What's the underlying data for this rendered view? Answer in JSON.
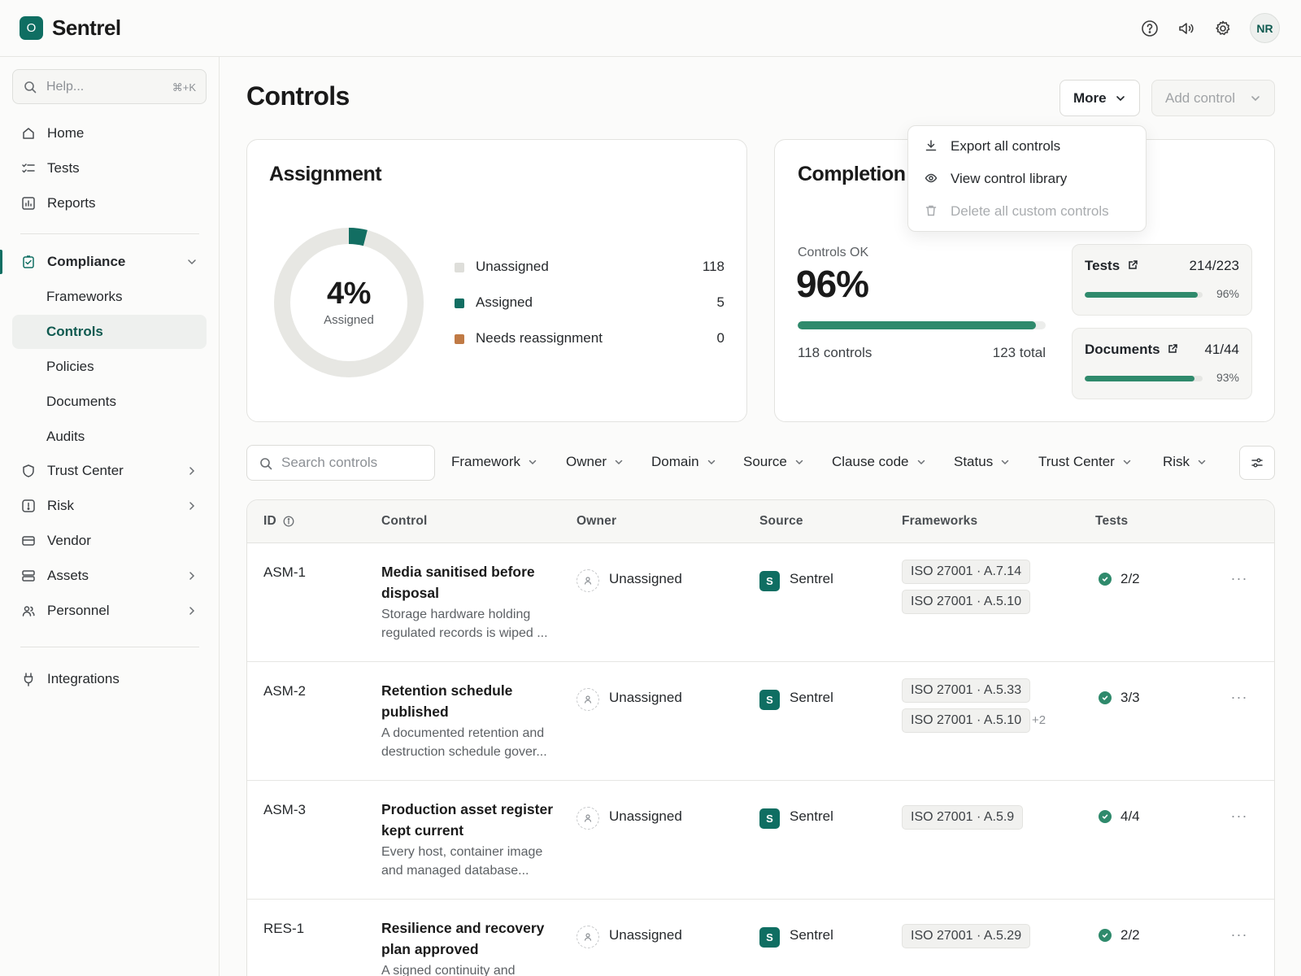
{
  "app": {
    "name": "Sentrel",
    "logo_letter": "O",
    "user_initials": "NR"
  },
  "header_icons": [
    "help-icon",
    "announcement-icon",
    "settings-icon"
  ],
  "sidebar": {
    "search_placeholder": "Help...",
    "search_shortcut": "⌘+K",
    "items": [
      {
        "label": "Home",
        "icon": "home-icon"
      },
      {
        "label": "Tests",
        "icon": "tests-icon"
      },
      {
        "label": "Reports",
        "icon": "reports-icon"
      },
      {
        "label": "Compliance",
        "icon": "compliance-icon",
        "expanded": true
      },
      {
        "label": "Trust Center",
        "icon": "shield-icon"
      },
      {
        "label": "Risk",
        "icon": "risk-icon"
      },
      {
        "label": "Vendor",
        "icon": "vendor-icon"
      },
      {
        "label": "Assets",
        "icon": "assets-icon"
      },
      {
        "label": "Personnel",
        "icon": "personnel-icon"
      },
      {
        "label": "Integrations",
        "icon": "plug-icon"
      }
    ],
    "compliance_sub": [
      "Frameworks",
      "Controls",
      "Policies",
      "Documents",
      "Audits"
    ],
    "active_sub": "Controls"
  },
  "page": {
    "title": "Controls",
    "more_button": "More",
    "add_button": "Add control"
  },
  "more_menu": {
    "items": [
      {
        "label": "Export all controls",
        "icon": "download-icon"
      },
      {
        "label": "View control library",
        "icon": "eye-icon"
      },
      {
        "label": "Delete all custom controls",
        "icon": "trash-icon",
        "disabled": true
      }
    ]
  },
  "assignment": {
    "title": "Assignment",
    "percent_label": "4%",
    "percent_sub": "Assigned",
    "assigned_fraction": 0.04,
    "legend": [
      {
        "label": "Unassigned",
        "value": "118",
        "color": "#dededa"
      },
      {
        "label": "Assigned",
        "value": "5",
        "color": "#126e62"
      },
      {
        "label": "Needs reassignment",
        "value": "0",
        "color": "#c07a45"
      }
    ]
  },
  "completion": {
    "title": "Completion",
    "ok_label": "Controls OK",
    "ok_percent": "96%",
    "ok_fraction": 0.96,
    "count_label": "118 controls",
    "total_label": "123 total",
    "tests": {
      "label": "Tests",
      "value": "214/223",
      "percent": "96%",
      "fraction": 0.96
    },
    "documents": {
      "label": "Documents",
      "value": "41/44",
      "percent": "93%",
      "fraction": 0.93
    }
  },
  "filters": {
    "search_placeholder": "Search controls",
    "items": [
      "Framework",
      "Owner",
      "Domain",
      "Source",
      "Clause code",
      "Status",
      "Trust Center",
      "Risk"
    ]
  },
  "table": {
    "headers": [
      "ID",
      "Control",
      "Owner",
      "Source",
      "Frameworks",
      "Tests"
    ],
    "rows": [
      {
        "id": "ASM-1",
        "title": "Media sanitised before disposal",
        "desc": "Storage hardware holding regulated records is wiped ...",
        "owner": "Unassigned",
        "source": "Sentrel",
        "source_letter": "S",
        "frameworks": [
          "ISO 27001 · A.7.14",
          "ISO 27001 · A.5.10"
        ],
        "more": "",
        "tests": "2/2"
      },
      {
        "id": "ASM-2",
        "title": "Retention schedule published",
        "desc": "A documented retention and destruction schedule gover...",
        "owner": "Unassigned",
        "source": "Sentrel",
        "source_letter": "S",
        "frameworks": [
          "ISO 27001 · A.5.33",
          "ISO 27001 · A.5.10"
        ],
        "more": "+2",
        "tests": "3/3"
      },
      {
        "id": "ASM-3",
        "title": "Production asset register kept current",
        "desc": "Every host, container image and managed database...",
        "owner": "Unassigned",
        "source": "Sentrel",
        "source_letter": "S",
        "frameworks": [
          "ISO 27001 · A.5.9"
        ],
        "more": "",
        "tests": "4/4"
      },
      {
        "id": "RES-1",
        "title": "Resilience and recovery plan approved",
        "desc": "A signed continuity and",
        "owner": "Unassigned",
        "source": "Sentrel",
        "source_letter": "S",
        "frameworks": [
          "ISO 27001 · A.5.29"
        ],
        "more": "",
        "tests": "2/2"
      }
    ]
  },
  "colors": {
    "brand": "#0f6e62",
    "progress": "#2f8a6c"
  }
}
